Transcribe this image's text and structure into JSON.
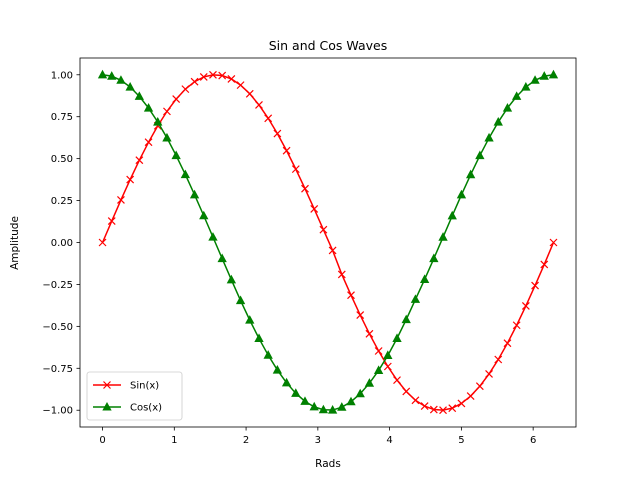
{
  "chart_data": {
    "type": "line",
    "title": "Sin and Cos Waves",
    "xlabel": "Rads",
    "ylabel": "Amplitude",
    "xlim": [
      -0.314,
      6.597
    ],
    "ylim": [
      -1.1,
      1.1
    ],
    "x_ticks": [
      0,
      1,
      2,
      3,
      4,
      5,
      6
    ],
    "x_tick_labels": [
      "0",
      "1",
      "2",
      "3",
      "4",
      "5",
      "6"
    ],
    "y_ticks": [
      -1.0,
      -0.75,
      -0.5,
      -0.25,
      0.0,
      0.25,
      0.5,
      0.75,
      1.0
    ],
    "y_tick_labels": [
      "−1.00",
      "−0.75",
      "−0.50",
      "−0.25",
      "0.00",
      "0.25",
      "0.50",
      "0.75",
      "1.00"
    ],
    "grid": false,
    "legend": "lower-left",
    "x": [
      0.0,
      0.1282,
      0.2565,
      0.3847,
      0.5129,
      0.6411,
      0.7694,
      0.8976,
      1.0258,
      1.154,
      1.2823,
      1.4105,
      1.5387,
      1.6669,
      1.7952,
      1.9234,
      2.0516,
      2.1799,
      2.3081,
      2.4363,
      2.5645,
      2.6928,
      2.821,
      2.9492,
      3.0774,
      3.2057,
      3.3339,
      3.4621,
      3.5903,
      3.7186,
      3.8468,
      3.975,
      4.1033,
      4.2315,
      4.3597,
      4.4879,
      4.6162,
      4.7444,
      4.8726,
      5.0008,
      5.1291,
      5.2573,
      5.3855,
      5.5137,
      5.642,
      5.7702,
      5.8984,
      6.0266,
      6.1549,
      6.2832
    ],
    "series": [
      {
        "name": "Sin(x)",
        "color": "#ff0000",
        "marker": "x",
        "values": [
          0.0,
          0.1279,
          0.2537,
          0.3753,
          0.4907,
          0.5981,
          0.6956,
          0.7818,
          0.8551,
          0.9144,
          0.9587,
          0.9872,
          0.9995,
          0.9954,
          0.9749,
          0.9383,
          0.8865,
          0.8202,
          0.7406,
          0.6492,
          0.5476,
          0.4375,
          0.3209,
          0.1999,
          0.0765,
          -0.0471,
          -0.1905,
          -0.3141,
          -0.4324,
          -0.5445,
          -0.6469,
          -0.7393,
          -0.8205,
          -0.8881,
          -0.9408,
          -0.9753,
          -0.9958,
          -0.9995,
          -0.9876,
          -0.9594,
          -0.9155,
          -0.8564,
          -0.7834,
          -0.6976,
          -0.6004,
          -0.4933,
          -0.3781,
          -0.2566,
          -0.1309,
          0.0
        ]
      },
      {
        "name": "Cos(x)",
        "color": "#008000",
        "marker": "triangle",
        "values": [
          1.0,
          0.9918,
          0.9673,
          0.9269,
          0.8713,
          0.8014,
          0.7183,
          0.6235,
          0.5184,
          0.4048,
          0.2844,
          0.1595,
          0.032,
          -0.0959,
          -0.2225,
          -0.3459,
          -0.4627,
          -0.5721,
          -0.6718,
          -0.7606,
          -0.8367,
          -0.8992,
          -0.9471,
          -0.9798,
          -0.9971,
          -0.9989,
          -0.9817,
          -0.9494,
          -0.9017,
          -0.8388,
          -0.7626,
          -0.6734,
          -0.5717,
          -0.4597,
          -0.3391,
          -0.2201,
          -0.0955,
          0.0318,
          0.1592,
          0.2843,
          0.4046,
          0.5182,
          0.6234,
          0.7181,
          0.8014,
          0.8713,
          0.9269,
          0.9673,
          0.9918,
          1.0
        ]
      }
    ]
  }
}
